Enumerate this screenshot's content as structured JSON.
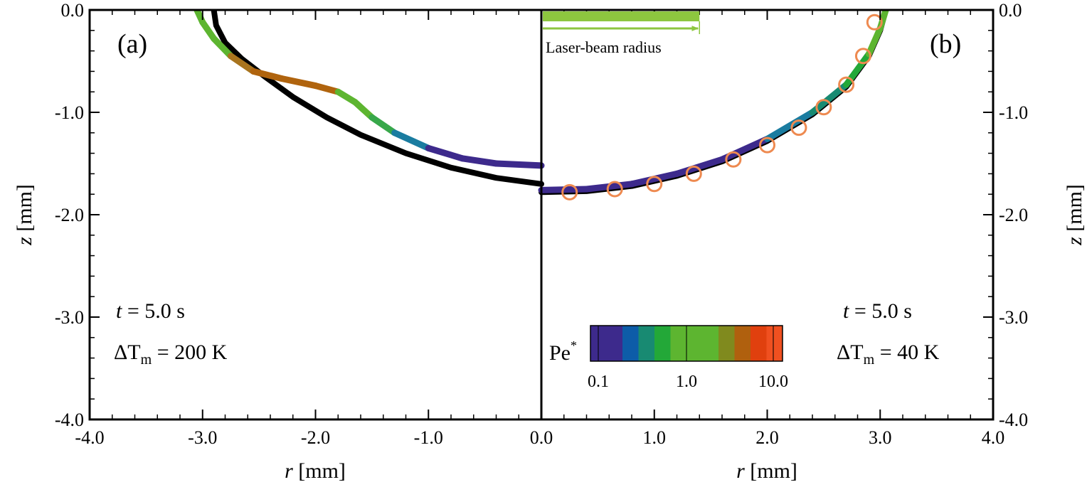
{
  "chart_data": {
    "type": "line",
    "x_axis": {
      "label_var": "r",
      "label_unit": " [mm]",
      "range": [
        -4.0,
        4.0
      ],
      "ticks": [
        -4.0,
        -3.0,
        -2.0,
        -1.0,
        0.0,
        1.0,
        2.0,
        3.0,
        4.0
      ],
      "tick_labels": [
        "-4.0",
        "-3.0",
        "-2.0",
        "-1.0",
        "0.0",
        "1.0",
        "2.0",
        "3.0",
        "4.0"
      ]
    },
    "y_axis": {
      "label_var": "z",
      "label_unit": " [mm]",
      "range": [
        -4.0,
        0.0
      ],
      "ticks": [
        0.0,
        -1.0,
        -2.0,
        -3.0,
        -4.0
      ],
      "tick_labels": [
        "0.0",
        "-1.0",
        "-2.0",
        "-3.0",
        "-4.0"
      ]
    },
    "panels": {
      "a": {
        "label": "(a)",
        "time_var": "t",
        "time_text": " = 5.0 s",
        "dt_sym": "ΔT",
        "dt_sub": "m",
        "dt_text": " = 200 K"
      },
      "b": {
        "label": "(b)",
        "time_var": "t",
        "time_text": " = 5.0 s",
        "dt_sym": "ΔT",
        "dt_sub": "m",
        "dt_text": " = 40 K"
      }
    },
    "laser_beam": {
      "label": "Laser-beam radius",
      "radius": 1.4,
      "color": "#8dc63f"
    },
    "colorbar": {
      "title": "Pe",
      "title_sup": "*",
      "tick_labels": [
        "0.1",
        "1.0",
        "10.0"
      ],
      "colors": [
        "#3d2a8c",
        "#3d2a8c",
        "#0d5ca8",
        "#188a72",
        "#23a838",
        "#5db530",
        "#5db530",
        "#5db530",
        "#808a1e",
        "#b0600e",
        "#e0400e",
        "#f05020"
      ]
    },
    "series": [
      {
        "name": "panel-a-black",
        "color": "#000000",
        "points": [
          [
            -2.9,
            0.0
          ],
          [
            -2.88,
            -0.15
          ],
          [
            -2.8,
            -0.32
          ],
          [
            -2.65,
            -0.48
          ],
          [
            -2.45,
            -0.65
          ],
          [
            -2.2,
            -0.85
          ],
          [
            -1.9,
            -1.05
          ],
          [
            -1.6,
            -1.22
          ],
          [
            -1.2,
            -1.4
          ],
          [
            -0.8,
            -1.54
          ],
          [
            -0.4,
            -1.64
          ],
          [
            0.0,
            -1.7
          ]
        ]
      },
      {
        "name": "panel-a-colored",
        "points": [
          [
            -3.05,
            0.0
          ],
          [
            -3.0,
            -0.12
          ],
          [
            -2.9,
            -0.28
          ],
          [
            -2.75,
            -0.45
          ],
          [
            -2.55,
            -0.6
          ],
          [
            -2.3,
            -0.67
          ],
          [
            -2.0,
            -0.74
          ],
          [
            -1.8,
            -0.8
          ],
          [
            -1.65,
            -0.9
          ],
          [
            -1.5,
            -1.05
          ],
          [
            -1.3,
            -1.2
          ],
          [
            -1.0,
            -1.35
          ],
          [
            -0.7,
            -1.45
          ],
          [
            -0.4,
            -1.5
          ],
          [
            0.0,
            -1.52
          ]
        ],
        "segment_colors": [
          "#5db530",
          "#5db530",
          "#5db530",
          "#a8741e",
          "#b0640e",
          "#b0640e",
          "#b0640e",
          "#5db530",
          "#5db530",
          "#38a84a",
          "#1a7ca0",
          "#3d2a8c",
          "#3d2a8c",
          "#3d2a8c"
        ]
      },
      {
        "name": "panel-b-black",
        "color": "#000000",
        "points": [
          [
            0.0,
            -1.78
          ],
          [
            0.4,
            -1.77
          ],
          [
            0.8,
            -1.72
          ],
          [
            1.2,
            -1.62
          ],
          [
            1.6,
            -1.48
          ],
          [
            2.0,
            -1.28
          ],
          [
            2.4,
            -1.02
          ],
          [
            2.7,
            -0.75
          ],
          [
            2.9,
            -0.45
          ],
          [
            3.0,
            -0.2
          ],
          [
            3.05,
            0.0
          ]
        ]
      },
      {
        "name": "panel-b-colored",
        "points": [
          [
            0.0,
            -1.76
          ],
          [
            0.4,
            -1.75
          ],
          [
            0.8,
            -1.7
          ],
          [
            1.2,
            -1.6
          ],
          [
            1.6,
            -1.46
          ],
          [
            2.0,
            -1.26
          ],
          [
            2.4,
            -1.0
          ],
          [
            2.7,
            -0.73
          ],
          [
            2.9,
            -0.43
          ],
          [
            3.0,
            -0.18
          ],
          [
            3.05,
            0.0
          ]
        ],
        "segment_colors": [
          "#3d2a8c",
          "#3d2a8c",
          "#3d2a8c",
          "#3d2a8c",
          "#3d2a8c",
          "#1a7ca0",
          "#188a72",
          "#23a838",
          "#5db530",
          "#5db530"
        ]
      },
      {
        "name": "panel-b-markers",
        "type": "scatter",
        "color": "#ee8a50",
        "points": [
          [
            0.25,
            -1.78
          ],
          [
            0.65,
            -1.75
          ],
          [
            1.0,
            -1.7
          ],
          [
            1.35,
            -1.6
          ],
          [
            1.7,
            -1.46
          ],
          [
            2.0,
            -1.32
          ],
          [
            2.28,
            -1.15
          ],
          [
            2.5,
            -0.95
          ],
          [
            2.7,
            -0.73
          ],
          [
            2.85,
            -0.45
          ],
          [
            2.95,
            -0.12
          ]
        ]
      }
    ]
  }
}
